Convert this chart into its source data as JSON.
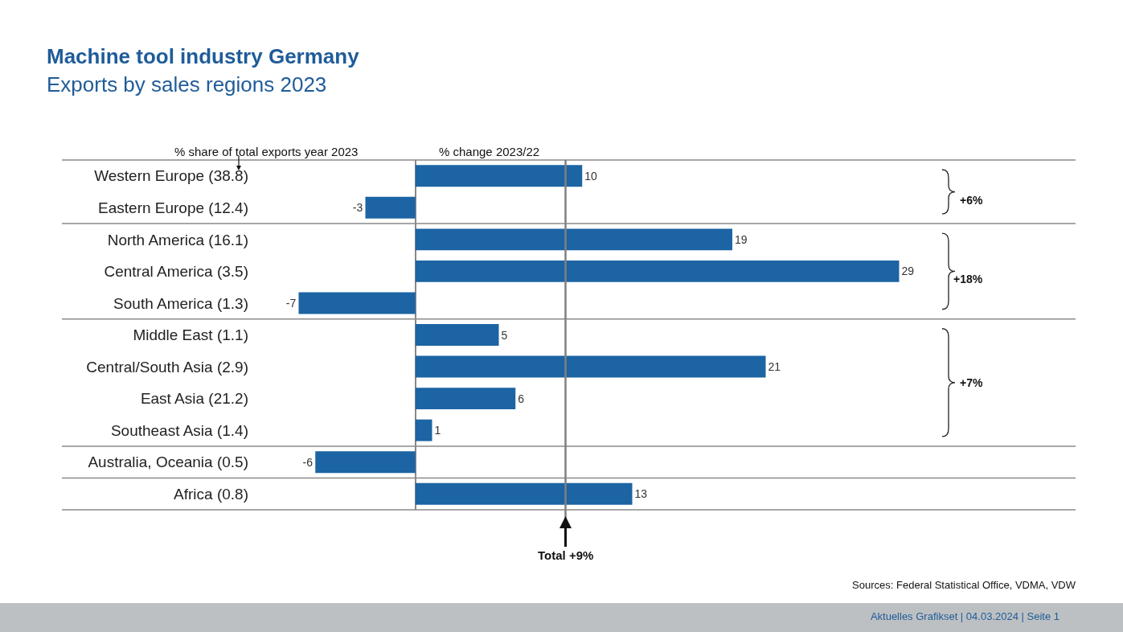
{
  "chart_data": {
    "type": "bar",
    "orientation": "horizontal",
    "title": "Machine tool industry Germany",
    "subtitle": "Exports by sales regions 2023",
    "ylabel": "% share of total exports year 2023",
    "xlabel": "% change 2023/22",
    "categories": [
      "Western Europe (38.8)",
      "Eastern Europe (12.4)",
      "North America (16.1)",
      "Central America (3.5)",
      "South America (1.3)",
      "Middle East (1.1)",
      "Central/South Asia (2.9)",
      "East Asia (21.2)",
      "Southeast Asia (1.4)",
      "Australia, Oceania (0.5)",
      "Africa (0.8)"
    ],
    "values": [
      10,
      -3,
      19,
      29,
      -7,
      5,
      21,
      6,
      1,
      -6,
      13
    ],
    "color": "#1c64a3",
    "data_labels": true,
    "grid": false,
    "legend": false,
    "ref_lines": [
      {
        "axis": "x",
        "value": 9,
        "label": "Total +9%",
        "color": "#808080"
      }
    ],
    "annotations": [
      "+6%",
      "+18%",
      "+7%",
      "Sources: Federal Statistical Office, VDMA, VDW",
      "Aktuelles Grafikset | 04.03.2024 | Seite 1"
    ]
  }
}
